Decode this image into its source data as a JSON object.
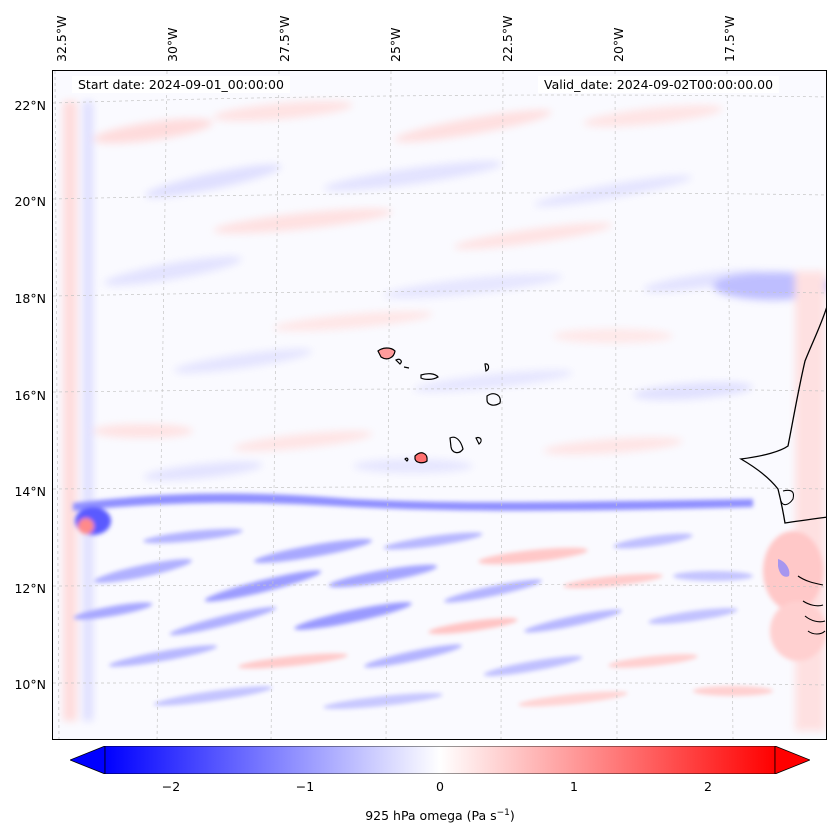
{
  "map": {
    "start_date": "Start date: 2024-09-01_00:00:00",
    "valid_date": "Valid_date: 2024-09-02T00:00:00.00",
    "lon_labels": [
      "32.5°W",
      "30°W",
      "27.5°W",
      "25°W",
      "22.5°W",
      "20°W",
      "17.5°W"
    ],
    "lat_labels": [
      "22°N",
      "20°N",
      "18°N",
      "16°N",
      "14°N",
      "12°N",
      "10°N"
    ],
    "field": "925 hPa omega",
    "colormap": "bwr",
    "colors": {
      "negative": "#0000ff",
      "neutral": "#ffffff",
      "positive": "#ff0000",
      "coast": "#000000",
      "grid": "#bbbbbb"
    }
  },
  "colorbar": {
    "ticks": [
      "−2",
      "−1",
      "0",
      "1",
      "2"
    ],
    "label_prefix": "925 hPa omega (Pa s",
    "label_exp": "−1",
    "label_suffix": ")",
    "vmin": -2.5,
    "vmax": 2.5,
    "extend": "both"
  }
}
